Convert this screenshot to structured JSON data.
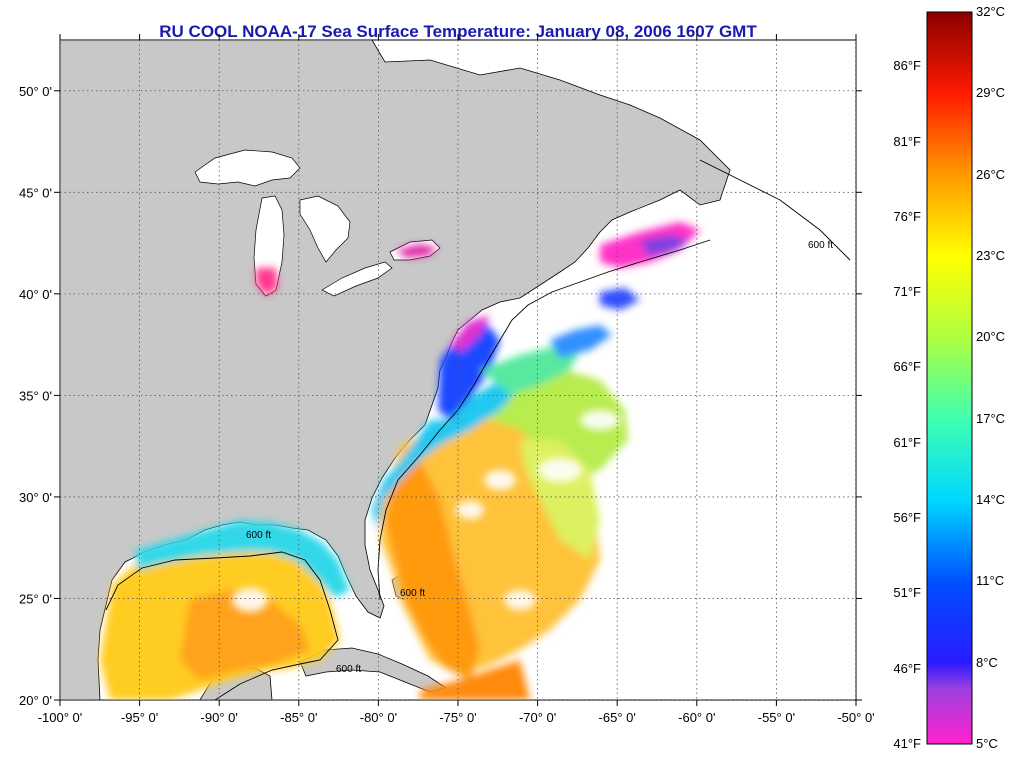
{
  "title": "RU COOL  NOAA-17  Sea Surface Temperature:  January 08, 2006 1607 GMT",
  "map": {
    "lon_range": [
      -100,
      -50
    ],
    "lat_range": [
      20,
      52.5
    ],
    "grid": true,
    "lon_ticks": [
      {
        "v": -100,
        "label": "-100° 0'"
      },
      {
        "v": -95,
        "label": "-95° 0'"
      },
      {
        "v": -90,
        "label": "-90° 0'"
      },
      {
        "v": -85,
        "label": "-85° 0'"
      },
      {
        "v": -80,
        "label": "-80° 0'"
      },
      {
        "v": -75,
        "label": "-75° 0'"
      },
      {
        "v": -70,
        "label": "-70° 0'"
      },
      {
        "v": -65,
        "label": "-65° 0'"
      },
      {
        "v": -60,
        "label": "-60° 0'"
      },
      {
        "v": -55,
        "label": "-55° 0'"
      },
      {
        "v": -50,
        "label": "-50° 0'"
      }
    ],
    "lat_ticks": [
      {
        "v": 20,
        "label": "20° 0'"
      },
      {
        "v": 25,
        "label": "25° 0'"
      },
      {
        "v": 30,
        "label": "30° 0'"
      },
      {
        "v": 35,
        "label": "35° 0'"
      },
      {
        "v": 40,
        "label": "40° 0'"
      },
      {
        "v": 45,
        "label": "45° 0'"
      },
      {
        "v": 50,
        "label": "50° 0'"
      }
    ],
    "contour_label": "600 ft",
    "colors": {
      "land": "#c8c8c8",
      "ocean_nodata": "#ffffff",
      "grid": "#555555"
    }
  },
  "colorbar": {
    "range_c": [
      5,
      32
    ],
    "celsius_ticks": [
      {
        "v": 32,
        "label": "32°C"
      },
      {
        "v": 29,
        "label": "29°C"
      },
      {
        "v": 26,
        "label": "26°C"
      },
      {
        "v": 23,
        "label": "23°C"
      },
      {
        "v": 20,
        "label": "20°C"
      },
      {
        "v": 17,
        "label": "17°C"
      },
      {
        "v": 14,
        "label": "14°C"
      },
      {
        "v": 11,
        "label": "11°C"
      },
      {
        "v": 8,
        "label": "8°C"
      },
      {
        "v": 5,
        "label": "5°C"
      }
    ],
    "fahrenheit_ticks": [
      {
        "v": 86,
        "label": "86°F"
      },
      {
        "v": 81,
        "label": "81°F"
      },
      {
        "v": 76,
        "label": "76°F"
      },
      {
        "v": 71,
        "label": "71°F"
      },
      {
        "v": 66,
        "label": "66°F"
      },
      {
        "v": 61,
        "label": "61°F"
      },
      {
        "v": 56,
        "label": "56°F"
      },
      {
        "v": 51,
        "label": "51°F"
      },
      {
        "v": 46,
        "label": "46°F"
      },
      {
        "v": 41,
        "label": "41°F"
      }
    ],
    "stops": [
      {
        "c": 5,
        "color": "#ff22cc"
      },
      {
        "c": 7,
        "color": "#a040e0"
      },
      {
        "c": 8,
        "color": "#2a1aff"
      },
      {
        "c": 11,
        "color": "#0050ff"
      },
      {
        "c": 14,
        "color": "#00d8ff"
      },
      {
        "c": 17,
        "color": "#40ffb0"
      },
      {
        "c": 20,
        "color": "#b0ff40"
      },
      {
        "c": 23,
        "color": "#ffff00"
      },
      {
        "c": 26,
        "color": "#ff9a00"
      },
      {
        "c": 29,
        "color": "#ff1a00"
      },
      {
        "c": 32,
        "color": "#8a0000"
      }
    ]
  }
}
